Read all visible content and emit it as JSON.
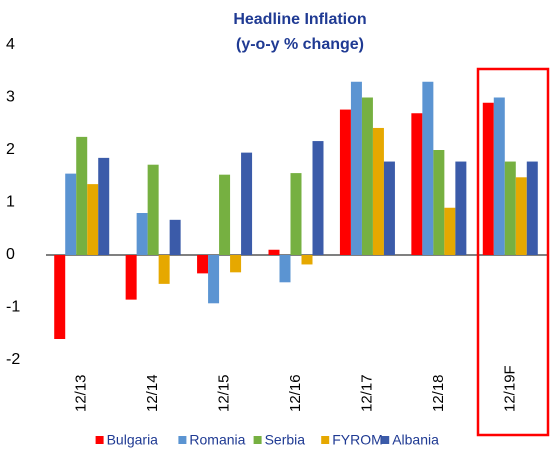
{
  "chart_data": {
    "type": "bar",
    "title": "Headline Inflation",
    "subtitle": "(y-o-y % change)",
    "categories": [
      "12/13",
      "12/14",
      "12/15",
      "12/16",
      "12/17",
      "12/18",
      "12/19F"
    ],
    "series": [
      {
        "name": "Bulgaria",
        "color": "#ff0000",
        "values": [
          -1.6,
          -0.85,
          -0.35,
          0.1,
          2.77,
          2.7,
          2.9
        ]
      },
      {
        "name": "Romania",
        "color": "#5b94d2",
        "values": [
          1.55,
          0.8,
          -0.92,
          -0.52,
          3.3,
          3.3,
          3.0
        ]
      },
      {
        "name": "Serbia",
        "color": "#76b041",
        "values": [
          2.25,
          1.72,
          1.53,
          1.56,
          3.0,
          2.0,
          1.78
        ]
      },
      {
        "name": "FYROM",
        "color": "#e6a800",
        "values": [
          1.35,
          -0.55,
          -0.33,
          -0.18,
          2.42,
          0.9,
          1.48
        ]
      },
      {
        "name": "Albania",
        "color": "#3b5ba9",
        "values": [
          1.85,
          0.67,
          1.95,
          2.17,
          1.78,
          1.78,
          1.78
        ]
      }
    ],
    "ylim": [
      -2,
      4
    ],
    "yticks": [
      -2,
      -1,
      0,
      1,
      2,
      3,
      4
    ],
    "grid": false,
    "legend": "bottom"
  }
}
